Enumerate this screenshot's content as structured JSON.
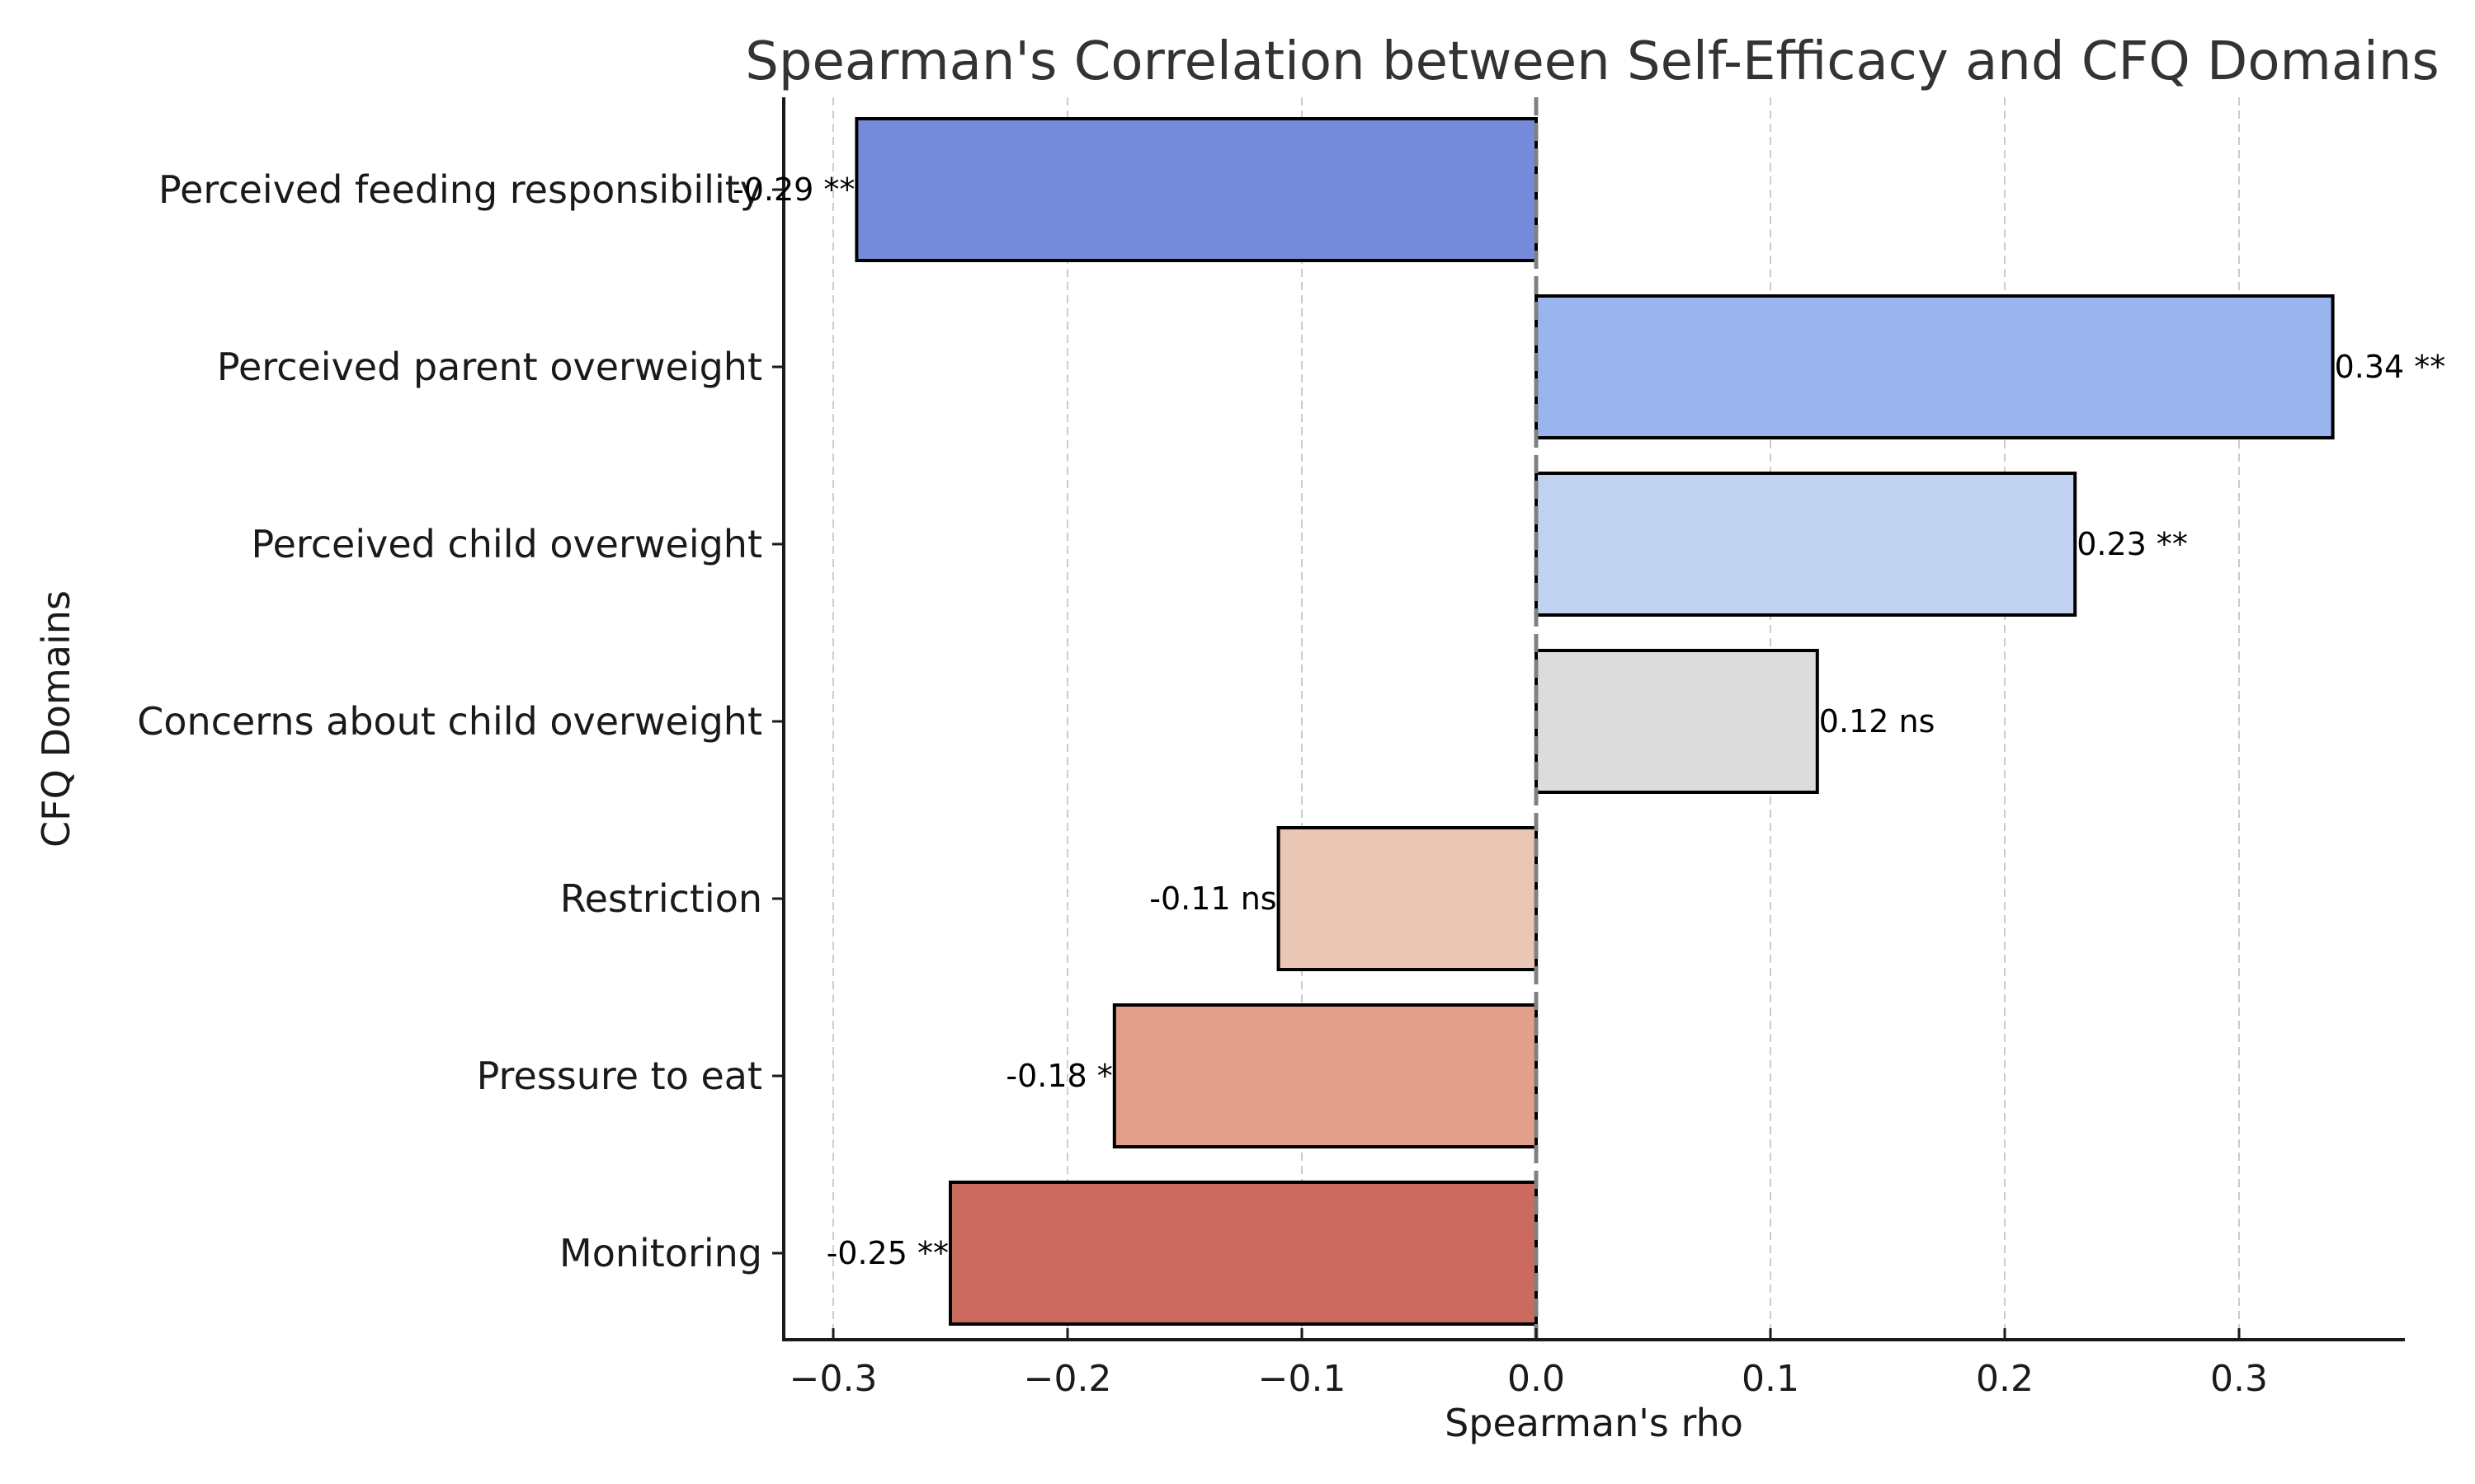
{
  "chart_data": {
    "type": "bar",
    "orientation": "horizontal",
    "title": "Spearman's Correlation between Self-Efficacy and CFQ Domains",
    "xlabel": "Spearman's rho",
    "ylabel": "CFQ Domains",
    "xlim": [
      -0.32,
      0.37
    ],
    "xticks": [
      -0.3,
      -0.2,
      -0.1,
      0.0,
      0.1,
      0.2,
      0.3
    ],
    "xtick_labels": [
      "−0.3",
      "−0.2",
      "−0.1",
      "0.0",
      "0.1",
      "0.2",
      "0.3"
    ],
    "grid": "x-dashed",
    "reference_line": {
      "x": 0.0,
      "style": "dashed",
      "color": "#808080"
    },
    "categories": [
      "Perceived feeding responsibility",
      "Perceived parent overweight",
      "Perceived child overweight",
      "Concerns about child overweight",
      "Restriction",
      "Pressure to eat",
      "Monitoring"
    ],
    "values": [
      -0.29,
      0.34,
      0.23,
      0.12,
      -0.11,
      -0.18,
      -0.25
    ],
    "data_labels": [
      "-0.29 **",
      "0.34 **",
      "0.23 **",
      "0.12 ns",
      "-0.11 ns",
      "-0.18 *",
      "-0.25 **"
    ],
    "colors": [
      "#758bd9",
      "#9ab4ee",
      "#c1d2f0",
      "#dcdcdc",
      "#eac6b5",
      "#e29f8a",
      "#cb6b60"
    ],
    "legend": "none"
  }
}
